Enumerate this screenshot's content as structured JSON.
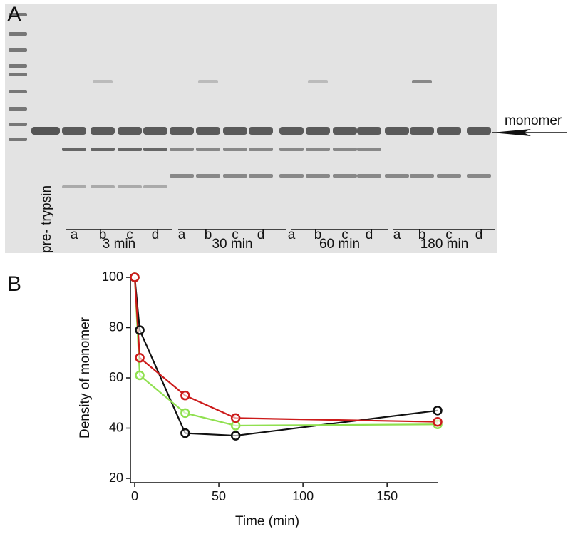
{
  "panel_labels": [
    "A",
    "B"
  ],
  "gel": {
    "arrow_label": "monomer",
    "pre_label": "pre- trypsin",
    "lanes": [
      "a",
      "b",
      "c",
      "d",
      "a",
      "b",
      "c",
      "d",
      "a",
      "b",
      "c",
      "d",
      "a",
      "b",
      "c",
      "d"
    ],
    "groups": [
      "3 min",
      "30 min",
      "60 min",
      "180 min"
    ]
  },
  "chart_data": {
    "type": "line",
    "x_label": "Time (min)",
    "y_label": "Density of monomer",
    "x": [
      0,
      3,
      30,
      60,
      180
    ],
    "series": [
      {
        "color": "#111111",
        "values": [
          100,
          79,
          38,
          37,
          47
        ]
      },
      {
        "color": "#90e050",
        "values": [
          100,
          61,
          46,
          41,
          41.5
        ]
      },
      {
        "color": "#cc1a1a",
        "values": [
          100,
          68,
          53,
          44,
          42.5
        ]
      }
    ],
    "xlim": [
      0,
      180
    ],
    "xticks": [
      0,
      50,
      100,
      150
    ],
    "ylim": [
      20,
      100
    ],
    "yticks": [
      20,
      40,
      60,
      80,
      100
    ]
  }
}
